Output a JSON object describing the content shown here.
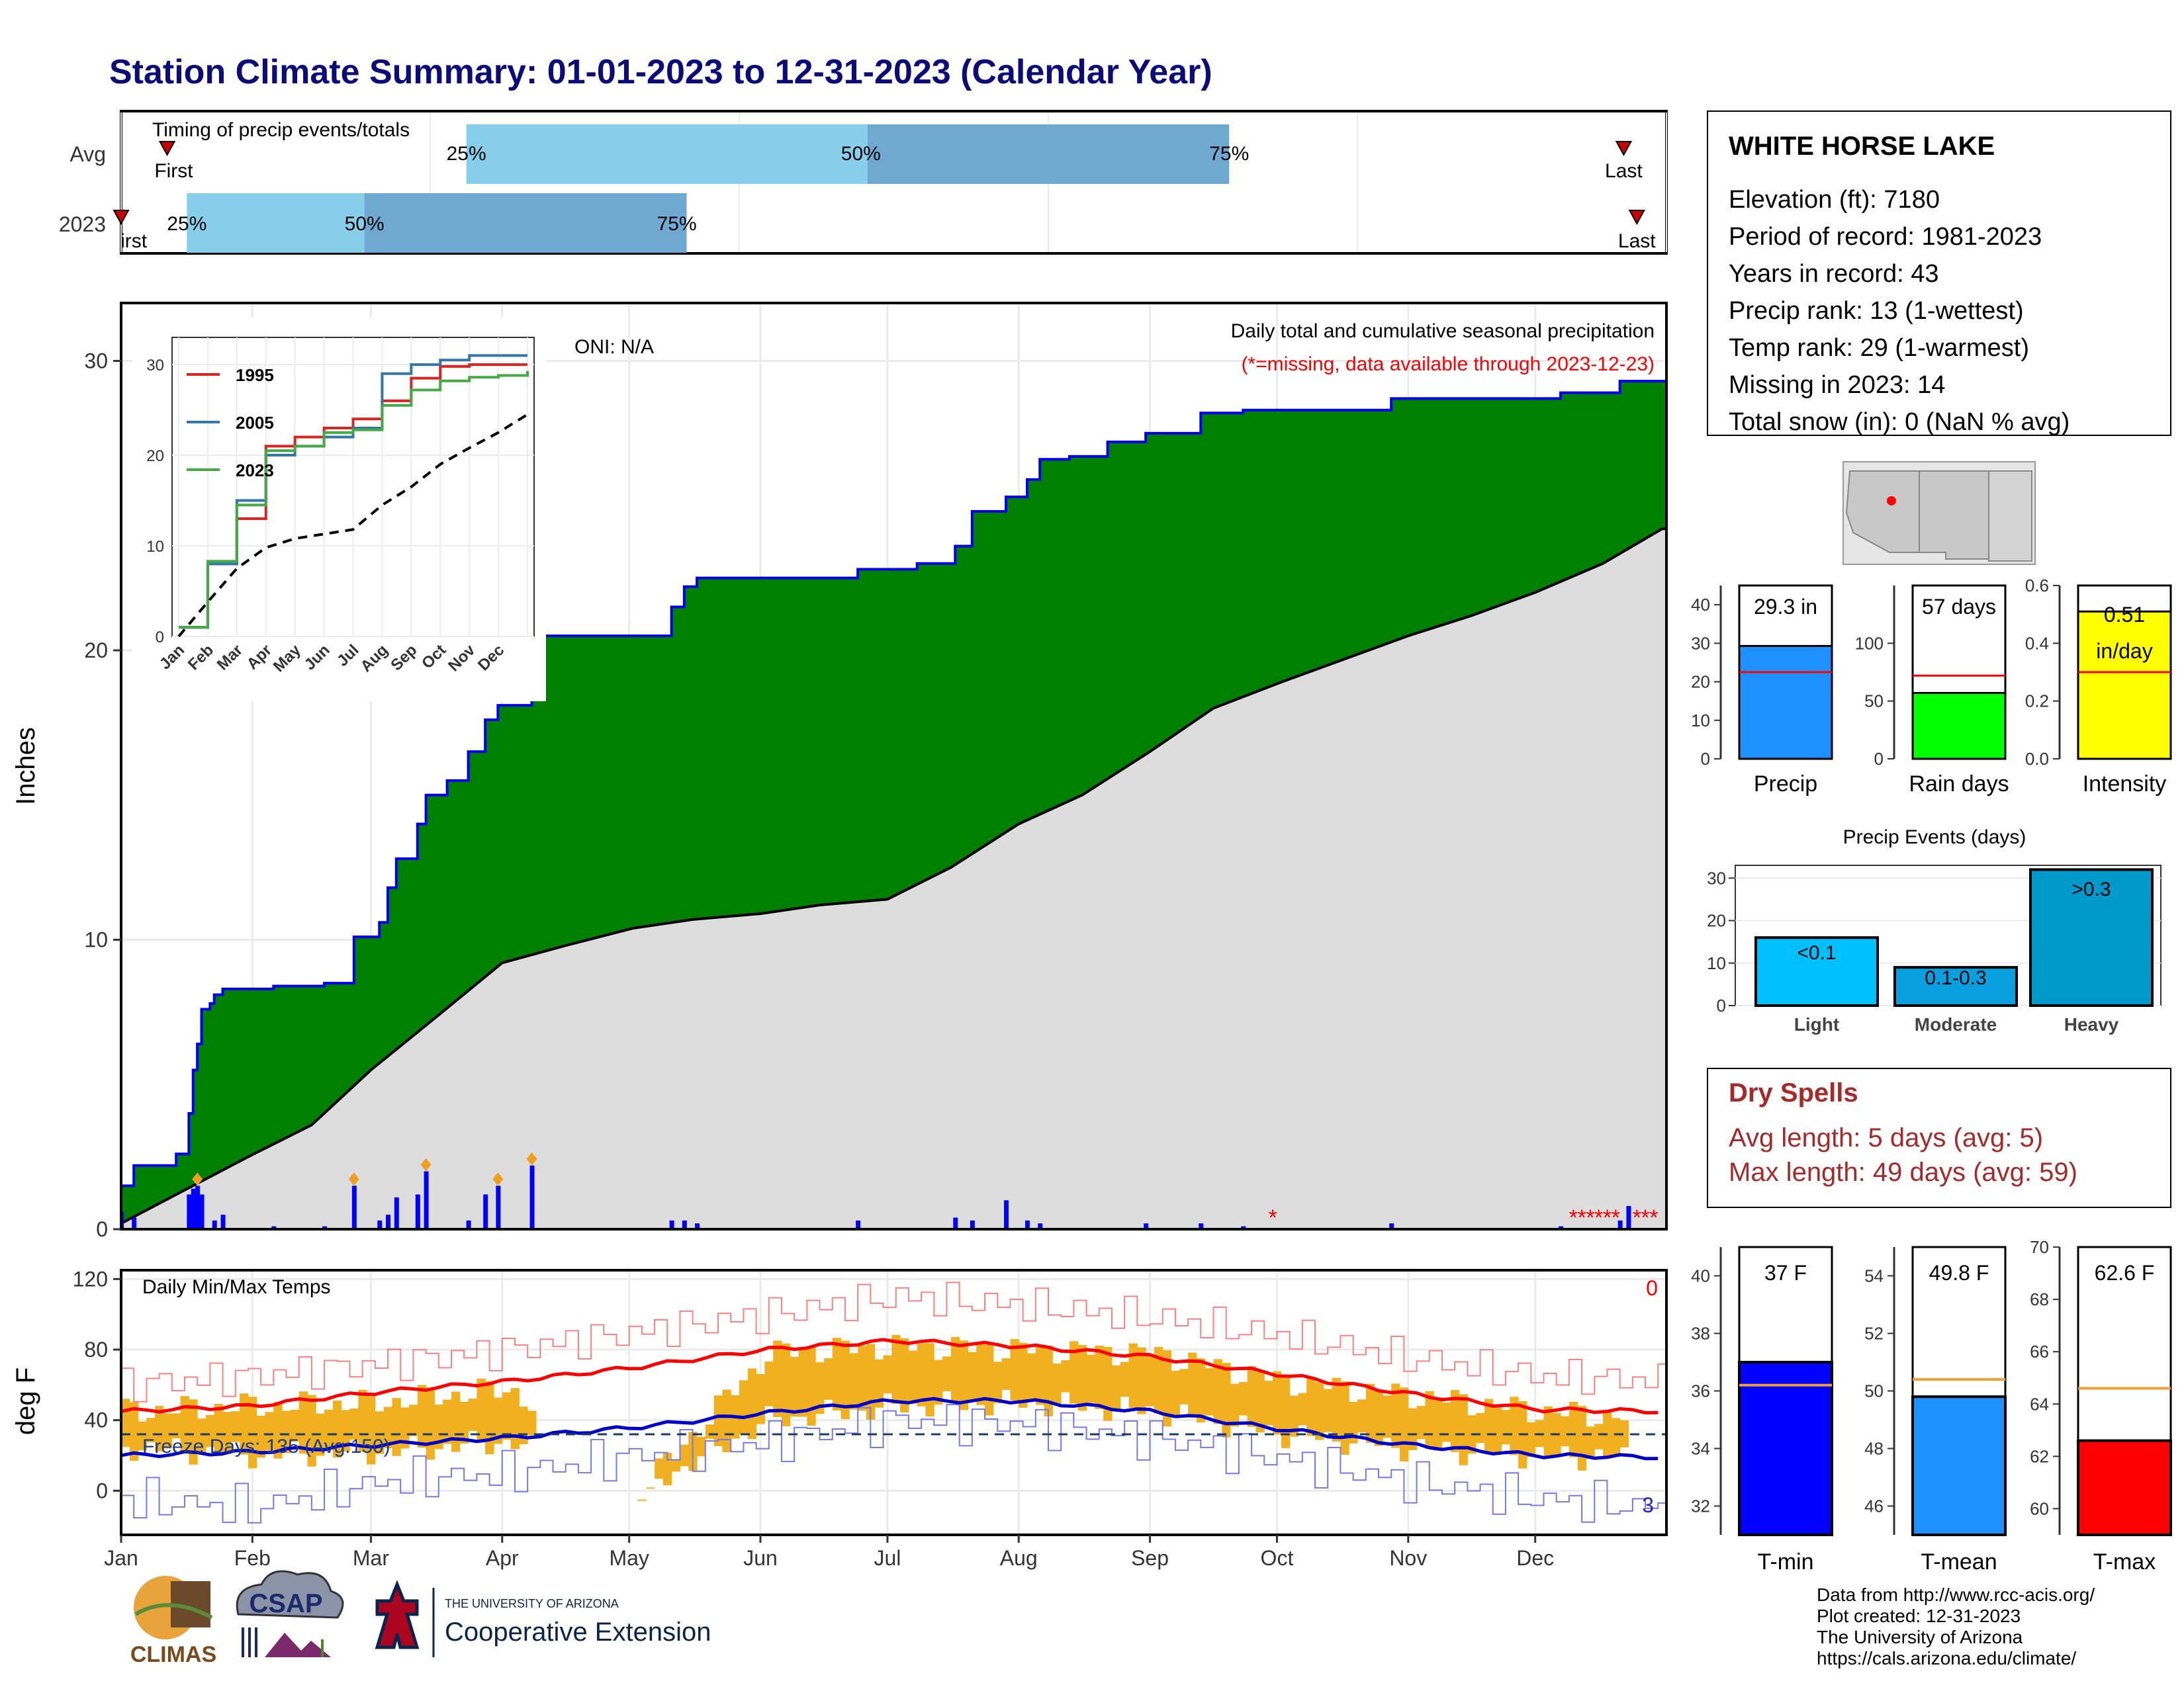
{
  "title": "Station Climate Summary: 01-01-2023 to 12-31-2023 (Calendar Year)",
  "colors": {
    "title": "#0b0b7a",
    "cumulative_2023": "#008000",
    "cumulative_avg": "#dddddd",
    "daily_bars": "#0000ff",
    "missing": "#ff0000",
    "temp_range": "#f0b020",
    "tmax_avg": "#ff0000",
    "tmin_avg": "#0000cc"
  },
  "timing": {
    "label": "Timing of precip events/totals",
    "rows": [
      {
        "name": "Avg",
        "first_label": "First",
        "last_label": "Last",
        "p25": "25%",
        "p50": "50%",
        "p75": "75%"
      },
      {
        "name": "2023",
        "first_label": "First",
        "last_label": "Last",
        "p25": "25%",
        "p50": "50%",
        "p75": "75%"
      }
    ]
  },
  "precip_panel": {
    "ylabel": "Inches",
    "oni": "ONI: N/A",
    "subtitle": "Daily total and cumulative seasonal precipitation",
    "missing_note": "(*=missing, data available through 2023-12-23)",
    "inset_legend": [
      "1995",
      "2005",
      "2023"
    ]
  },
  "temp_panel": {
    "ylabel": "deg F",
    "label": "Daily Min/Max Temps",
    "freeze": "Freeze Days: 135 (Avg:150)",
    "max_count": "0",
    "min_count": "3"
  },
  "station": {
    "name": "WHITE HORSE LAKE",
    "lines": [
      "Elevation (ft): 7180",
      "Period of record: 1981-2023",
      "Years in record: 43",
      "Precip rank: 13 (1-wettest)",
      "Temp rank: 29 (1-warmest)",
      "Missing in 2023: 14",
      "Total snow (in): 0 (NaN % avg)"
    ]
  },
  "summary_bars": {
    "precip": {
      "label": "Precip",
      "value_label": "29.3 in"
    },
    "rain_days": {
      "label": "Rain days",
      "value_label": "57 days"
    },
    "intensity": {
      "label": "Intensity",
      "value_label": "0.51",
      "unit_label": "in/day"
    }
  },
  "events": {
    "title": "Precip Events (days)",
    "categories": [
      "Light",
      "Moderate",
      "Heavy"
    ],
    "labels": [
      "<0.1",
      "0.1-0.3",
      ">0.3"
    ]
  },
  "dry_spells": {
    "title": "Dry Spells",
    "avg": "Avg length: 5 days (avg: 5)",
    "max": "Max length: 49 days (avg: 59)"
  },
  "temp_bars": {
    "tmin": {
      "label": "T-min",
      "value_label": "37 F"
    },
    "tmean": {
      "label": "T-mean",
      "value_label": "49.8 F"
    },
    "tmax": {
      "label": "T-max",
      "value_label": "62.6 F"
    }
  },
  "credits": [
    "Data from http://www.rcc-acis.org/",
    "Plot created: 12-31-2023",
    "The University of Arizona",
    "https://cals.arizona.edu/climate/"
  ],
  "logos": {
    "climas": "CLIMAS",
    "csap": "CSAP",
    "ua_small": "THE UNIVERSITY OF ARIZONA",
    "ua_big": "Cooperative Extension"
  },
  "chart_data": [
    {
      "id": "timing",
      "type": "bar",
      "categories": [
        "Avg",
        "2023"
      ],
      "x_unit": "day of year",
      "avg": {
        "first": 14,
        "p25": 105,
        "p50": 227,
        "p75": 337,
        "last": 457
      },
      "y2023": {
        "first": 0,
        "p25": 20,
        "p50": 74,
        "p75": 172,
        "last": 461
      }
    },
    {
      "id": "cumulative_precip",
      "type": "area",
      "xlabel": "",
      "ylabel": "Inches",
      "ylim": [
        0,
        32
      ],
      "x_ticks": [
        "Jan",
        "Feb",
        "Mar",
        "Apr",
        "May",
        "Jun",
        "Jul",
        "Aug",
        "Sep",
        "Oct",
        "Nov",
        "Dec"
      ],
      "y_ticks": [
        0,
        10,
        20,
        30
      ],
      "series": [
        {
          "name": "2023",
          "points": [
            [
              0,
              1.5
            ],
            [
              3,
              2.2
            ],
            [
              12,
              2.2
            ],
            [
              13,
              2.6
            ],
            [
              16,
              4.0
            ],
            [
              17,
              5.5
            ],
            [
              18,
              6.4
            ],
            [
              19,
              7.6
            ],
            [
              21,
              7.8
            ],
            [
              22,
              8.1
            ],
            [
              24,
              8.3
            ],
            [
              36,
              8.4
            ],
            [
              48,
              8.5
            ],
            [
              55,
              10.1
            ],
            [
              61,
              10.6
            ],
            [
              63,
              11.8
            ],
            [
              65,
              12.8
            ],
            [
              70,
              14.0
            ],
            [
              72,
              15.0
            ],
            [
              77,
              15.5
            ],
            [
              82,
              16.5
            ],
            [
              86,
              17.6
            ],
            [
              89,
              18.1
            ],
            [
              97,
              20.5
            ],
            [
              127,
              20.5
            ],
            [
              130,
              21.5
            ],
            [
              133,
              22.2
            ],
            [
              136,
              22.5
            ],
            [
              165,
              22.5
            ],
            [
              174,
              22.8
            ],
            [
              188,
              23.0
            ],
            [
              197,
              23.6
            ],
            [
              201,
              24.8
            ],
            [
              209,
              25.3
            ],
            [
              214,
              25.9
            ],
            [
              217,
              26.6
            ],
            [
              224,
              26.7
            ],
            [
              233,
              27.2
            ],
            [
              242,
              27.5
            ],
            [
              255,
              28.2
            ],
            [
              265,
              28.3
            ],
            [
              300,
              28.7
            ],
            [
              340,
              28.9
            ],
            [
              354,
              29.3
            ],
            [
              364,
              29.3
            ]
          ]
        },
        {
          "name": "Average",
          "points": [
            [
              0,
              0.2
            ],
            [
              30,
              2.5
            ],
            [
              45,
              3.6
            ],
            [
              59,
              5.5
            ],
            [
              75,
              7.4
            ],
            [
              90,
              9.2
            ],
            [
              105,
              9.8
            ],
            [
              121,
              10.4
            ],
            [
              135,
              10.7
            ],
            [
              151,
              10.9
            ],
            [
              165,
              11.2
            ],
            [
              181,
              11.4
            ],
            [
              196,
              12.5
            ],
            [
              212,
              14.0
            ],
            [
              227,
              15.0
            ],
            [
              243,
              16.5
            ],
            [
              258,
              18.0
            ],
            [
              274,
              18.9
            ],
            [
              289,
              19.7
            ],
            [
              304,
              20.5
            ],
            [
              319,
              21.2
            ],
            [
              334,
              22.0
            ],
            [
              350,
              23.0
            ],
            [
              364,
              24.2
            ]
          ]
        }
      ],
      "daily_bars": [
        [
          0,
          0.6
        ],
        [
          3,
          0.4
        ],
        [
          16,
          1.2
        ],
        [
          17,
          1.4
        ],
        [
          18,
          1.5
        ],
        [
          19,
          1.2
        ],
        [
          22,
          0.3
        ],
        [
          24,
          0.5
        ],
        [
          36,
          0.1
        ],
        [
          48,
          0.1
        ],
        [
          55,
          1.5
        ],
        [
          61,
          0.3
        ],
        [
          63,
          0.5
        ],
        [
          65,
          1.1
        ],
        [
          70,
          1.2
        ],
        [
          72,
          2.0
        ],
        [
          82,
          0.3
        ],
        [
          86,
          1.2
        ],
        [
          89,
          1.5
        ],
        [
          97,
          2.2
        ],
        [
          130,
          0.3
        ],
        [
          133,
          0.3
        ],
        [
          136,
          0.2
        ],
        [
          174,
          0.3
        ],
        [
          197,
          0.4
        ],
        [
          201,
          0.3
        ],
        [
          209,
          1.0
        ],
        [
          214,
          0.3
        ],
        [
          217,
          0.2
        ],
        [
          242,
          0.2
        ],
        [
          255,
          0.2
        ],
        [
          265,
          0.1
        ],
        [
          300,
          0.2
        ],
        [
          340,
          0.1
        ],
        [
          354,
          0.3
        ],
        [
          356,
          0.8
        ]
      ],
      "missing_days": [
        272,
        343,
        345,
        347,
        349,
        351,
        353,
        358,
        360,
        362
      ]
    },
    {
      "id": "inset_cumulative",
      "type": "line",
      "ylim": [
        0,
        32
      ],
      "x_ticks": [
        "Jan",
        "Feb",
        "Mar",
        "Apr",
        "May",
        "Jun",
        "Jul",
        "Aug",
        "Sep",
        "Oct",
        "Nov",
        "Dec"
      ],
      "y_ticks": [
        0,
        10,
        20,
        30
      ],
      "series": [
        {
          "name": "1995",
          "values": [
            1,
            8,
            13,
            21,
            22,
            23,
            24,
            26,
            28.5,
            29.8,
            30,
            30,
            30
          ]
        },
        {
          "name": "2005",
          "values": [
            1,
            8,
            15,
            20,
            21,
            22,
            23,
            29,
            30,
            30.5,
            31,
            31,
            31
          ]
        },
        {
          "name": "2023",
          "values": [
            1,
            8.3,
            14.5,
            20.5,
            21,
            22.5,
            22.8,
            25.5,
            27.2,
            28.2,
            28.6,
            28.8,
            29.3
          ]
        },
        {
          "name": "Average",
          "values": [
            0,
            3.8,
            7.5,
            9.8,
            10.8,
            11.3,
            11.8,
            14.5,
            16.5,
            19.0,
            20.8,
            22.5,
            24.5
          ]
        }
      ]
    },
    {
      "id": "daily_temps",
      "type": "line",
      "ylabel": "deg F",
      "ylim": [
        -25,
        125
      ],
      "y_ticks": [
        0,
        40,
        80,
        120
      ],
      "freeze_line": 32,
      "tmax_avg": [
        45,
        48,
        56,
        62,
        70,
        80,
        85,
        82,
        76,
        66,
        55,
        46,
        45
      ],
      "tmin_avg": [
        20,
        22,
        26,
        30,
        36,
        44,
        51,
        51,
        45,
        35,
        26,
        20,
        19
      ],
      "tmax_record": [
        60,
        65,
        72,
        80,
        90,
        100,
        110,
        105,
        98,
        88,
        75,
        65,
        62
      ],
      "tmin_record": [
        -5,
        -10,
        5,
        10,
        20,
        28,
        40,
        38,
        30,
        18,
        5,
        -5,
        -10
      ],
      "obs_max": [
        45,
        48,
        50,
        58,
        0,
        78,
        82,
        80,
        78,
        62,
        54,
        45,
        40
      ],
      "obs_min": [
        25,
        20,
        22,
        28,
        0,
        40,
        48,
        50,
        45,
        32,
        24,
        20,
        18
      ]
    },
    {
      "id": "summary_bars",
      "type": "bar",
      "categories": [
        "Precip",
        "Rain days",
        "Intensity"
      ],
      "values": [
        29.3,
        57,
        0.51
      ],
      "averages": [
        22.5,
        72,
        0.3
      ],
      "ylims": [
        [
          0,
          45
        ],
        [
          0,
          150
        ],
        [
          0,
          0.6
        ]
      ],
      "y_ticks": [
        [
          0,
          10,
          20,
          30,
          40
        ],
        [
          0,
          50,
          100
        ],
        [
          0.0,
          0.2,
          0.4,
          0.6
        ]
      ]
    },
    {
      "id": "precip_events",
      "type": "bar",
      "categories": [
        "Light",
        "Moderate",
        "Heavy"
      ],
      "values": [
        16,
        9,
        32
      ],
      "ylim": [
        0,
        33
      ],
      "y_ticks": [
        0,
        10,
        20,
        30
      ]
    },
    {
      "id": "temp_bars",
      "type": "bar",
      "categories": [
        "T-min",
        "T-mean",
        "T-max"
      ],
      "values": [
        37,
        49.8,
        62.6
      ],
      "averages": [
        36.2,
        50.4,
        64.6
      ],
      "ylims": [
        [
          31,
          41
        ],
        [
          45,
          55
        ],
        [
          59,
          70
        ]
      ],
      "y_ticks": [
        [
          32,
          34,
          36,
          38,
          40
        ],
        [
          46,
          48,
          50,
          52,
          54
        ],
        [
          60,
          62,
          64,
          66,
          68,
          70
        ]
      ]
    }
  ]
}
